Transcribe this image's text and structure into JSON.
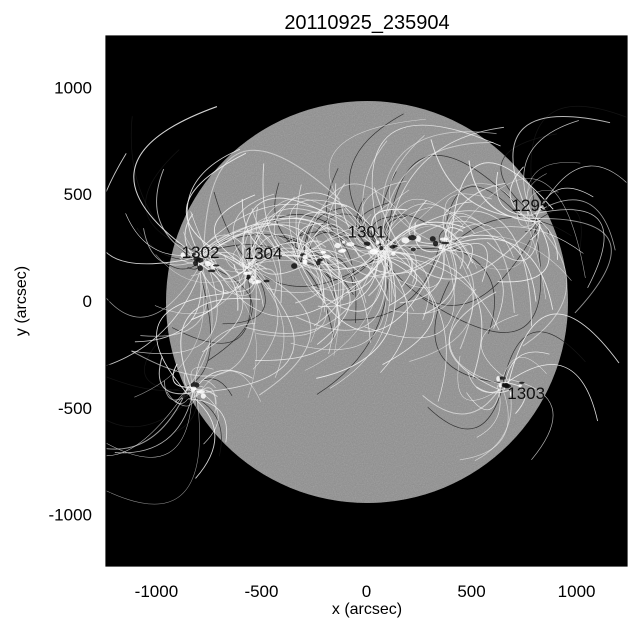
{
  "figure": {
    "title": "20110925_235904",
    "xlabel": "x (arcsec)",
    "ylabel": "y (arcsec)",
    "xticks": [
      -1000,
      -500,
      0,
      500,
      1000
    ],
    "yticks": [
      1000,
      500,
      0,
      -500,
      -1000
    ],
    "xlim": [
      -1240,
      1240
    ],
    "ylim": [
      -1240,
      1240
    ]
  },
  "active_regions": [
    {
      "label": "1302",
      "x": -790,
      "y": 230
    },
    {
      "label": "1304",
      "x": -490,
      "y": 225
    },
    {
      "label": "1301",
      "x": 0,
      "y": 325
    },
    {
      "label": "1295",
      "x": 780,
      "y": 450
    },
    {
      "label": "1303",
      "x": 760,
      "y": -430
    }
  ],
  "colors": {
    "background": "#000000",
    "disk": "#8e8e8e",
    "field_lines_light": "#f2f2f2",
    "field_lines_dark": "#1a1a1a",
    "axes": "#000000",
    "region_label": "#111111"
  }
}
